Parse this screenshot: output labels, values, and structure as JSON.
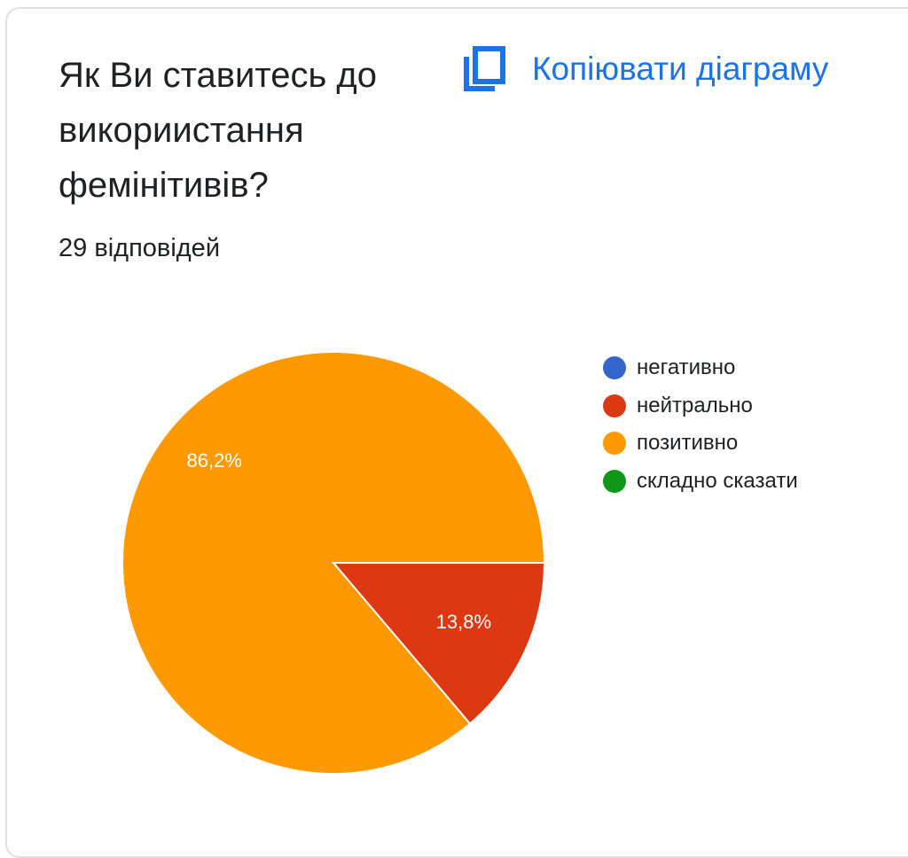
{
  "question": {
    "title": "Як Ви ставитесь до викориистання фемінітивів?",
    "response_count": "29 відповідей"
  },
  "actions": {
    "copy_chart_label": "Копіювати діаграму",
    "copy_icon": "copy-icon"
  },
  "colors": {
    "accent": "#1a73e8",
    "negative": "#3366cc",
    "neutral": "#dc3912",
    "positive": "#ff9900",
    "hard_to_say": "#109618"
  },
  "chart_data": {
    "type": "pie",
    "title": "",
    "labels": [
      "негативно",
      "нейтрально",
      "позитивно",
      "складно сказати"
    ],
    "values": [
      0,
      13.8,
      86.2,
      0
    ],
    "value_labels": [
      "",
      "13,8%",
      "86,2%",
      ""
    ],
    "colors": [
      "#3366cc",
      "#dc3912",
      "#ff9900",
      "#109618"
    ],
    "legend": "right"
  }
}
